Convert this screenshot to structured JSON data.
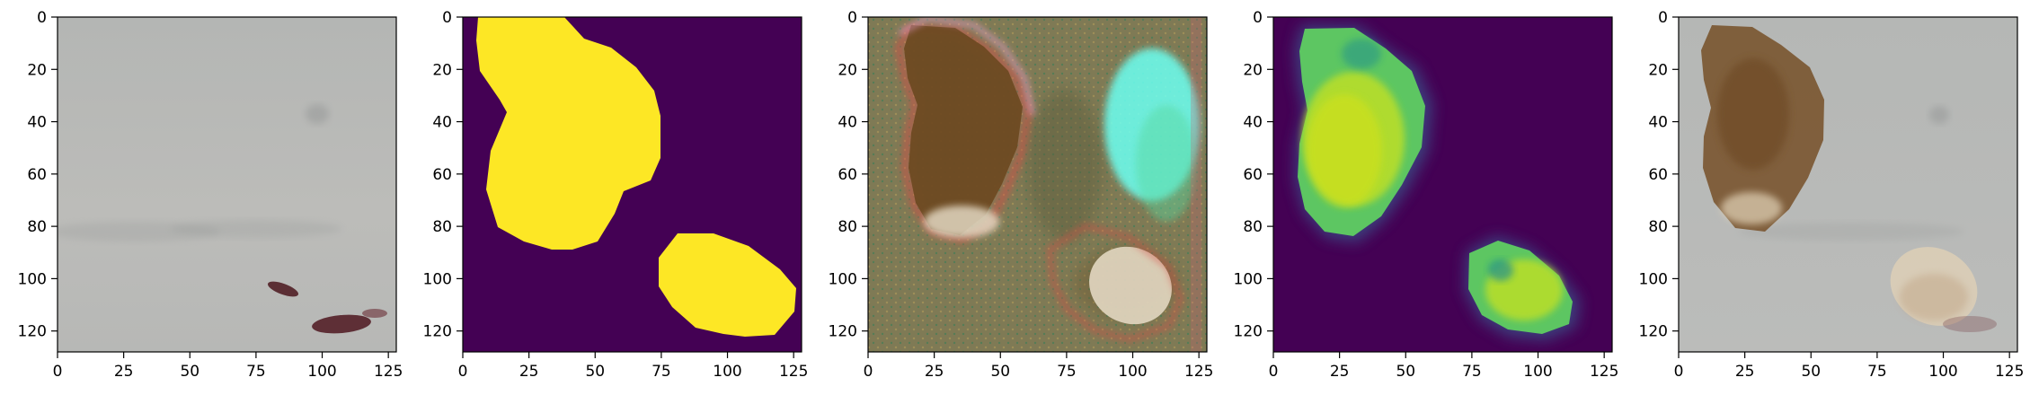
{
  "figure": {
    "panels": [
      {
        "id": "p1",
        "kind": "input-photo",
        "x_ticks": [
          "0",
          "25",
          "50",
          "75",
          "100",
          "125"
        ],
        "y_ticks": [
          "0",
          "20",
          "40",
          "60",
          "80",
          "100",
          "120"
        ],
        "colors": {
          "bg": "#b7b9b7",
          "stain_dark": "#5b2f34",
          "stain_mid": "#7a4a4f"
        }
      },
      {
        "id": "p2",
        "kind": "ground-truth-mask",
        "x_ticks": [
          "0",
          "25",
          "50",
          "75",
          "100",
          "125"
        ],
        "y_ticks": [
          "0",
          "20",
          "40",
          "60",
          "80",
          "100",
          "120"
        ],
        "colors": {
          "bg": "#440154",
          "fg": "#fde725"
        }
      },
      {
        "id": "p3",
        "kind": "generated-rgb",
        "x_ticks": [
          "0",
          "25",
          "50",
          "75",
          "100",
          "125"
        ],
        "y_ticks": [
          "0",
          "20",
          "40",
          "60",
          "80",
          "100",
          "120"
        ],
        "colors": {
          "bg": "#7f7a55",
          "brown": "#6e4a22",
          "cream": "#e2d7c1",
          "cyan": "#6cfff0",
          "green": "#58d79d",
          "red": "#d84b44",
          "pink": "#f2a2d7"
        }
      },
      {
        "id": "p4",
        "kind": "predicted-mask",
        "x_ticks": [
          "0",
          "25",
          "50",
          "75",
          "100",
          "125"
        ],
        "y_ticks": [
          "0",
          "20",
          "40",
          "60",
          "80",
          "100",
          "120"
        ],
        "colors": {
          "bg": "#440154",
          "blue": "#3b528b",
          "teal": "#21918c",
          "green": "#5ec962",
          "yellow": "#d7e219"
        }
      },
      {
        "id": "p5",
        "kind": "overlay",
        "x_ticks": [
          "0",
          "25",
          "50",
          "75",
          "100",
          "125"
        ],
        "y_ticks": [
          "0",
          "20",
          "40",
          "60",
          "80",
          "100",
          "120"
        ],
        "colors": {
          "bg": "#b8bab8",
          "brown": "#7c5a36",
          "light": "#e0d1b6"
        }
      }
    ]
  }
}
